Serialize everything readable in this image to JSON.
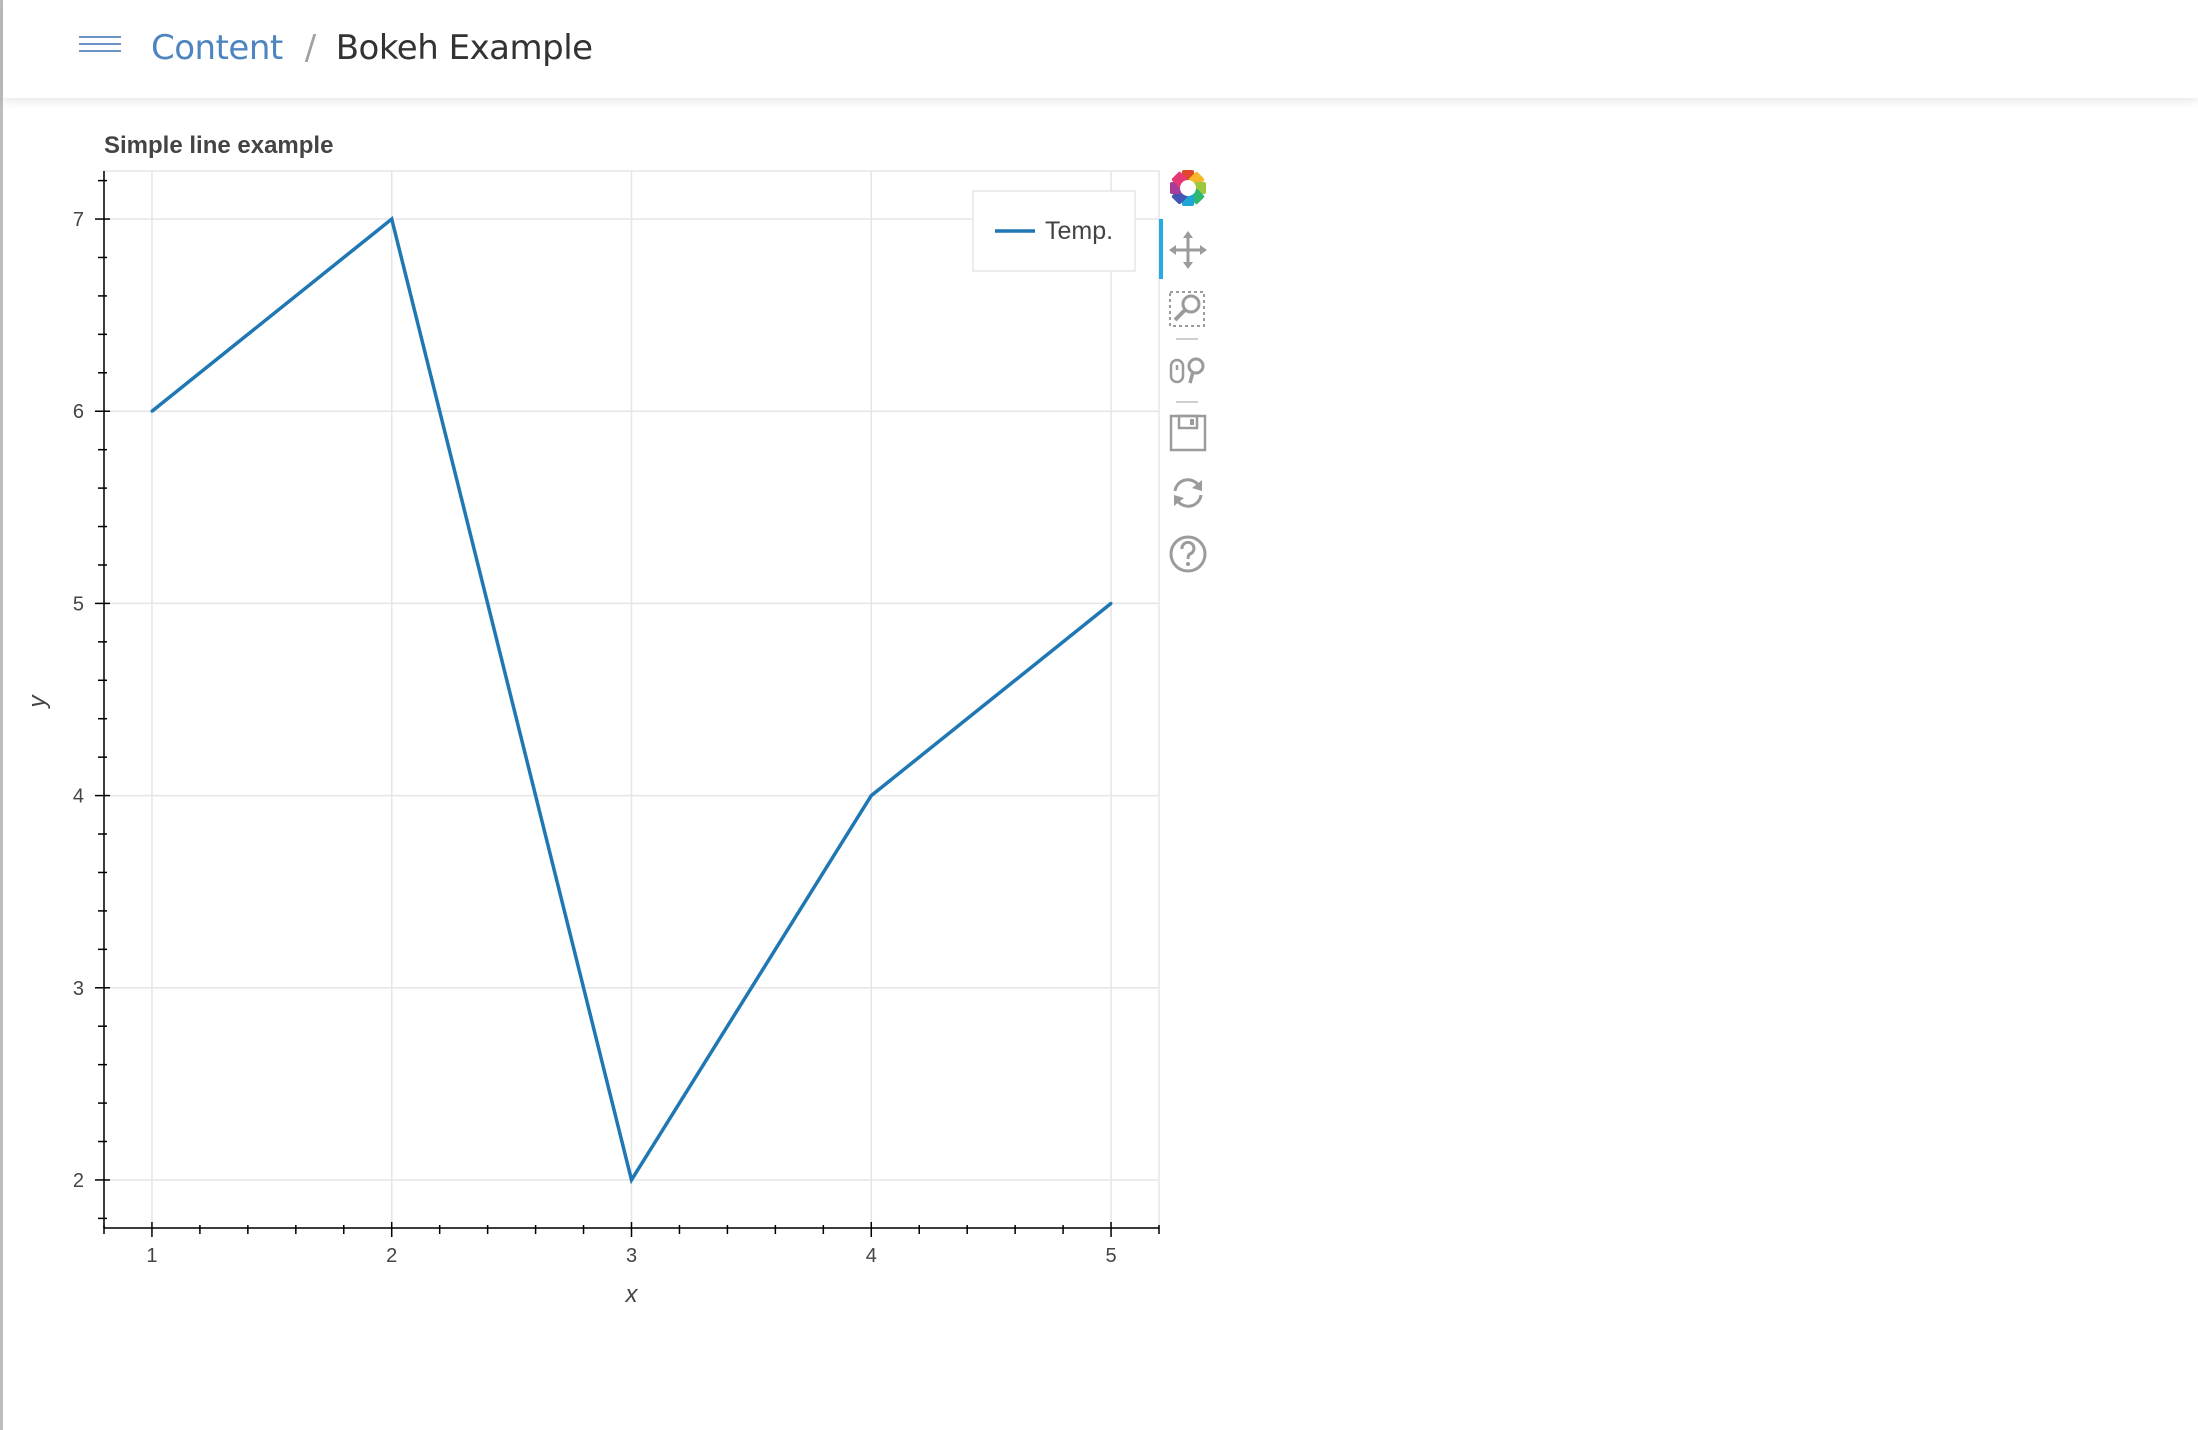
{
  "breadcrumb": {
    "parent": "Content",
    "separator": "/",
    "current": "Bokeh Example"
  },
  "toolbar": {
    "tools": [
      "bokeh-logo-icon",
      "pan-icon",
      "box-zoom-icon",
      "wheel-zoom-icon",
      "save-icon",
      "reset-icon",
      "help-icon"
    ],
    "active_tool": "pan-icon"
  },
  "chart_data": {
    "type": "line",
    "title": "Simple line example",
    "xlabel": "x",
    "ylabel": "y",
    "x": [
      1,
      2,
      3,
      4,
      5
    ],
    "series": [
      {
        "name": "Temp.",
        "values": [
          6,
          7,
          2,
          4,
          5
        ],
        "color": "#1f77b4"
      }
    ],
    "xlim": [
      0.8,
      5.2
    ],
    "ylim": [
      1.75,
      7.25
    ],
    "xticks": [
      1,
      2,
      3,
      4,
      5
    ],
    "yticks": [
      2,
      3,
      4,
      5,
      6,
      7
    ],
    "grid": true,
    "legend_position": "top-right"
  }
}
